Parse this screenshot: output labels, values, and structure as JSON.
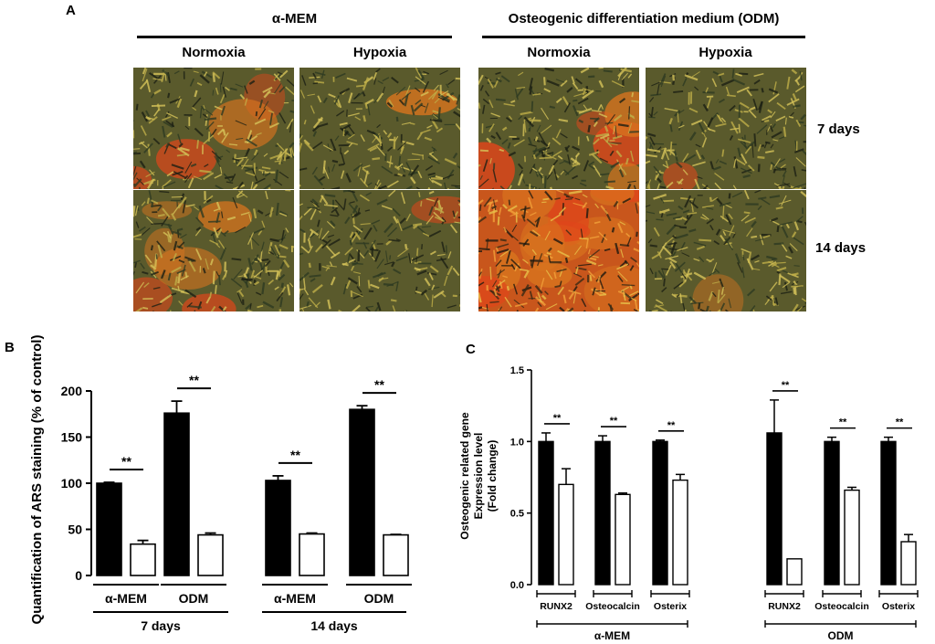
{
  "panel_a": {
    "letter": "A",
    "group_left": "α-MEM",
    "group_right": "Osteogenic differentiation medium (ODM)",
    "conditions": [
      "Normoxia",
      "Hypoxia",
      "Normoxia",
      "Hypoxia"
    ],
    "timepoints": [
      "7 days",
      "14 days"
    ],
    "staining_level": [
      [
        0.3,
        0.04,
        0.38,
        0.05
      ],
      [
        0.45,
        0.08,
        0.85,
        0.06
      ]
    ]
  },
  "chart_data": [
    {
      "panel": "B",
      "type": "bar",
      "ylabel": "Quantification of ARS staining (% of control)",
      "ylim": [
        0,
        200
      ],
      "yticks": [
        "0",
        "50",
        "100",
        "150",
        "200"
      ],
      "series": [
        {
          "name": "Normoxia",
          "fill": "#000000",
          "values": [
            100,
            176,
            103,
            180
          ],
          "errors": [
            1,
            13,
            5,
            4
          ]
        },
        {
          "name": "Hypoxia",
          "fill": "#ffffff",
          "values": [
            34,
            44,
            45,
            44
          ],
          "errors": [
            4,
            2,
            1,
            0.5
          ]
        }
      ],
      "group_labels": [
        "α-MEM",
        "ODM",
        "α-MEM",
        "ODM"
      ],
      "timepoint_labels": [
        "7 days",
        "14 days"
      ],
      "significance": [
        "**",
        "**",
        "**",
        "**"
      ],
      "legend": "none"
    },
    {
      "panel": "C",
      "type": "bar",
      "ylabel_lines": [
        "Osteogenic related gene",
        "Expression level",
        "(Fold change)"
      ],
      "ylim": [
        0,
        1.5
      ],
      "yticks": [
        "0.0",
        "0.5",
        "1.0",
        "1.5"
      ],
      "series": [
        {
          "name": "Normoxia",
          "fill": "#000000",
          "values": [
            1.0,
            1.0,
            1.0,
            1.06,
            1.0,
            1.0
          ],
          "errors": [
            0.06,
            0.04,
            0.01,
            0.23,
            0.03,
            0.03
          ]
        },
        {
          "name": "Hypoxia",
          "fill": "#ffffff",
          "values": [
            0.7,
            0.63,
            0.73,
            0.18,
            0.66,
            0.3
          ],
          "errors": [
            0.11,
            0.01,
            0.04,
            0.0,
            0.02,
            0.05
          ]
        }
      ],
      "gene_labels": [
        "RUNX2",
        "Osteocalcin",
        "Osterix",
        "RUNX2",
        "Osteocalcin",
        "Osterix"
      ],
      "medium_labels": [
        "α-MEM",
        "ODM"
      ],
      "significance": [
        "**",
        "**",
        "**",
        "**",
        "**",
        "**"
      ],
      "legend": "none"
    }
  ]
}
